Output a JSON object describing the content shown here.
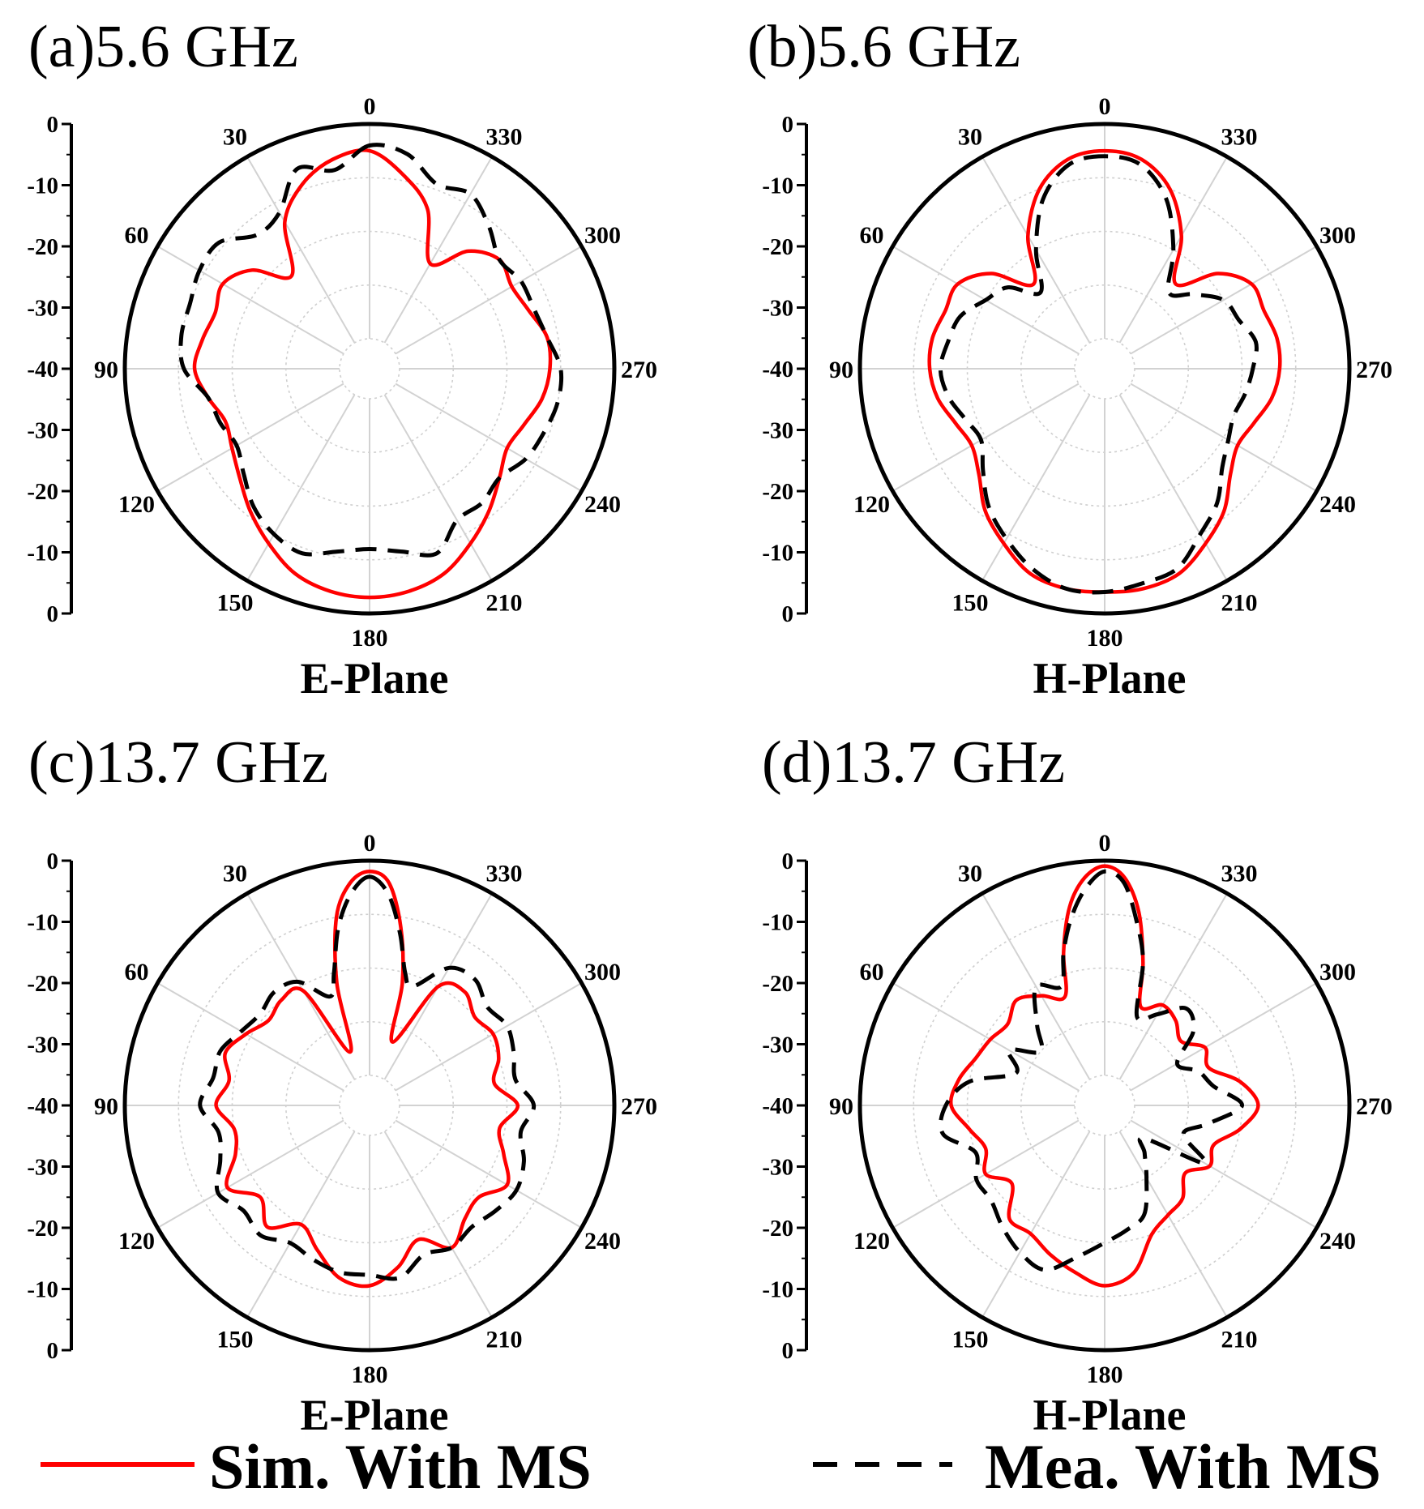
{
  "legend": [
    {
      "label": "Sim. With MS",
      "color": "#ff0000",
      "style": "solid"
    },
    {
      "label": "Mea. With MS",
      "color": "#000000",
      "style": "dashed"
    }
  ],
  "chart_data": [
    {
      "type": "polar-line",
      "panel": "(a)",
      "title": "(a)5.6 GHz",
      "xlabel": "E-Plane",
      "angle_ticks": [
        "0",
        "30",
        "60",
        "90",
        "120",
        "150",
        "180",
        "210",
        "240",
        "270",
        "300",
        "330"
      ],
      "radial_ticks_upper": [
        "0",
        "-10",
        "-20",
        "-30",
        "-40"
      ],
      "radial_ticks_lower": [
        "-30",
        "-20",
        "-10",
        "0"
      ],
      "rlim": [
        -40,
        0
      ],
      "angle_direction": "counterclockwise",
      "series": [
        {
          "name": "Sim. With MS",
          "color": "#ff0000",
          "style": "solid",
          "angles": [
            0,
            10,
            20,
            30,
            40,
            50,
            60,
            70,
            80,
            90,
            100,
            110,
            120,
            130,
            140,
            150,
            160,
            170,
            180,
            190,
            200,
            210,
            220,
            230,
            240,
            250,
            260,
            270,
            280,
            290,
            300,
            310,
            320,
            330,
            340,
            350
          ],
          "values": [
            -5,
            -6,
            -9,
            -14,
            -23,
            -17,
            -14,
            -15,
            -14,
            -13,
            -15,
            -17,
            -16,
            -14,
            -11,
            -8,
            -5,
            -3.5,
            -3,
            -3.5,
            -5,
            -8,
            -11,
            -14,
            -16,
            -15,
            -13,
            -12,
            -12,
            -14,
            -15,
            -14,
            -17,
            -23,
            -14,
            -9
          ]
        },
        {
          "name": "Mea. With MS",
          "color": "#000000",
          "style": "dashed",
          "angles": [
            0,
            10,
            20,
            30,
            40,
            50,
            60,
            70,
            80,
            90,
            100,
            110,
            120,
            130,
            140,
            150,
            160,
            170,
            180,
            190,
            200,
            210,
            220,
            230,
            240,
            250,
            260,
            270,
            280,
            290,
            300,
            310,
            320,
            330,
            340,
            350
          ],
          "values": [
            -4,
            -8,
            -6,
            -12,
            -13,
            -9,
            -9,
            -10,
            -10,
            -11,
            -15,
            -16,
            -17,
            -15,
            -12,
            -10,
            -9,
            -11,
            -12,
            -11,
            -9,
            -13,
            -13,
            -14,
            -12,
            -11,
            -10,
            -10,
            -12,
            -13,
            -13,
            -14,
            -11,
            -8,
            -9,
            -5
          ]
        }
      ]
    },
    {
      "type": "polar-line",
      "panel": "(b)",
      "title": "(b)5.6 GHz",
      "xlabel": "H-Plane",
      "angle_ticks": [
        "0",
        "30",
        "60",
        "90",
        "120",
        "150",
        "180",
        "210",
        "240",
        "270",
        "300",
        "330"
      ],
      "radial_ticks_upper": [
        "0",
        "-10",
        "-20",
        "-30",
        "-40"
      ],
      "radial_ticks_lower": [
        "-30",
        "-20",
        "-10",
        "0"
      ],
      "rlim": [
        -40,
        0
      ],
      "angle_direction": "counterclockwise",
      "series": [
        {
          "name": "Sim. With MS",
          "color": "#ff0000",
          "style": "solid",
          "angles": [
            0,
            10,
            20,
            30,
            40,
            50,
            60,
            70,
            80,
            90,
            100,
            110,
            120,
            130,
            140,
            150,
            160,
            170,
            180,
            190,
            200,
            210,
            220,
            230,
            240,
            250,
            260,
            270,
            280,
            290,
            300,
            310,
            320,
            330,
            340,
            350
          ],
          "values": [
            -5,
            -6,
            -10,
            -17,
            -25,
            -18,
            -14,
            -14,
            -13,
            -13,
            -14,
            -16,
            -17,
            -15,
            -11,
            -8,
            -5,
            -4,
            -4,
            -4,
            -5,
            -8,
            -11,
            -15,
            -17,
            -16,
            -14,
            -13,
            -13,
            -14,
            -14,
            -18,
            -25,
            -17,
            -10,
            -6
          ]
        },
        {
          "name": "Mea. With MS",
          "color": "#000000",
          "style": "dashed",
          "angles": [
            0,
            10,
            20,
            30,
            40,
            50,
            60,
            70,
            80,
            90,
            100,
            110,
            120,
            130,
            140,
            150,
            160,
            170,
            180,
            190,
            200,
            210,
            220,
            230,
            240,
            250,
            260,
            270,
            280,
            290,
            300,
            310,
            320,
            330,
            340,
            350
          ],
          "values": [
            -6,
            -7,
            -12,
            -20,
            -27,
            -22,
            -20,
            -17,
            -16,
            -15,
            -16,
            -18,
            -19,
            -16,
            -12,
            -9,
            -6,
            -4,
            -4,
            -5,
            -6,
            -10,
            -13,
            -17,
            -19,
            -20,
            -19,
            -18,
            -17,
            -19,
            -20,
            -24,
            -27,
            -20,
            -12,
            -7
          ]
        }
      ]
    },
    {
      "type": "polar-line",
      "panel": "(c)",
      "title": "(c)13.7 GHz",
      "xlabel": "E-Plane",
      "angle_ticks": [
        "0",
        "30",
        "60",
        "90",
        "120",
        "150",
        "180",
        "210",
        "240",
        "270",
        "300",
        "330"
      ],
      "radial_ticks_upper": [
        "0",
        "-10",
        "-20",
        "-30",
        "-40"
      ],
      "radial_ticks_lower": [
        "-30",
        "-20",
        "-10",
        "0"
      ],
      "rlim": [
        -40,
        0
      ],
      "angle_direction": "counterclockwise",
      "series": [
        {
          "name": "Sim. With MS",
          "color": "#ff0000",
          "style": "solid",
          "angles": [
            0,
            5,
            10,
            15,
            20,
            30,
            40,
            50,
            60,
            70,
            80,
            90,
            100,
            110,
            120,
            130,
            140,
            150,
            160,
            170,
            180,
            190,
            200,
            210,
            220,
            230,
            240,
            250,
            260,
            270,
            280,
            290,
            300,
            310,
            320,
            330,
            340,
            345,
            350,
            355
          ],
          "values": [
            -2,
            -4,
            -10,
            -22,
            -35,
            -21,
            -20,
            -21,
            -19,
            -17,
            -19,
            -17,
            -20,
            -19,
            -15,
            -19,
            -16,
            -20,
            -17,
            -13,
            -12,
            -15,
            -19,
            -15,
            -18,
            -19,
            -16,
            -19,
            -21,
            -18,
            -22,
            -20,
            -19,
            -20,
            -18,
            -20,
            -33,
            -22,
            -12,
            -4
          ]
        },
        {
          "name": "Mea. With MS",
          "color": "#000000",
          "style": "dashed",
          "angles": [
            0,
            5,
            10,
            15,
            20,
            30,
            40,
            50,
            60,
            70,
            80,
            90,
            100,
            110,
            120,
            130,
            140,
            150,
            160,
            170,
            180,
            190,
            200,
            210,
            220,
            230,
            240,
            250,
            260,
            270,
            280,
            290,
            300,
            310,
            320,
            330,
            340,
            345,
            350,
            355
          ],
          "values": [
            -3,
            -6,
            -12,
            -20,
            -24,
            -19,
            -18,
            -19,
            -18,
            -16,
            -16,
            -14,
            -17,
            -16,
            -13,
            -15,
            -14,
            -16,
            -15,
            -14,
            -14,
            -13,
            -16,
            -15,
            -16,
            -15,
            -14,
            -15,
            -17,
            -15,
            -18,
            -17,
            -16,
            -17,
            -15,
            -16,
            -22,
            -20,
            -13,
            -6
          ]
        }
      ]
    },
    {
      "type": "polar-line",
      "panel": "(d)",
      "title": "(d)13.7 GHz",
      "xlabel": "H-Plane",
      "angle_ticks": [
        "0",
        "30",
        "60",
        "90",
        "120",
        "150",
        "180",
        "210",
        "240",
        "270",
        "300",
        "330"
      ],
      "radial_ticks_upper": [
        "0",
        "-10",
        "-20",
        "-30",
        "-40"
      ],
      "radial_ticks_lower": [
        "-30",
        "-20",
        "-10",
        "0"
      ],
      "rlim": [
        -40,
        0
      ],
      "angle_direction": "counterclockwise",
      "series": [
        {
          "name": "Sim. With MS",
          "color": "#ff0000",
          "style": "solid",
          "angles": [
            0,
            5,
            10,
            15,
            20,
            30,
            40,
            50,
            60,
            70,
            80,
            90,
            100,
            110,
            120,
            130,
            140,
            150,
            160,
            170,
            180,
            190,
            200,
            210,
            220,
            230,
            240,
            250,
            260,
            270,
            280,
            290,
            300,
            310,
            320,
            330,
            340,
            345,
            350,
            355
          ],
          "values": [
            -1,
            -3,
            -8,
            -16,
            -24,
            -22,
            -20,
            -22,
            -21,
            -20,
            -18,
            -17,
            -20,
            -22,
            -20,
            -23,
            -18,
            -18,
            -16,
            -14,
            -12,
            -14,
            -20,
            -22,
            -23,
            -26,
            -23,
            -24,
            -20,
            -17,
            -20,
            -25,
            -24,
            -27,
            -25,
            -24,
            -26,
            -18,
            -9,
            -3
          ]
        },
        {
          "name": "Mea. With MS",
          "color": "#000000",
          "style": "dashed",
          "angles": [
            0,
            5,
            10,
            15,
            20,
            30,
            40,
            50,
            60,
            70,
            80,
            90,
            100,
            110,
            120,
            130,
            140,
            150,
            160,
            170,
            180,
            190,
            200,
            210,
            220,
            230,
            240,
            250,
            260,
            270,
            280,
            290,
            300,
            310,
            320,
            330,
            340,
            345,
            350,
            355
          ],
          "values": [
            -2,
            -5,
            -10,
            -16,
            -22,
            -20,
            -26,
            -30,
            -25,
            -28,
            -20,
            -16,
            -15,
            -20,
            -18,
            -18,
            -16,
            -14,
            -13,
            -17,
            -20,
            -22,
            -24,
            -30,
            -34,
            -36,
            -24,
            -30,
            -26,
            -20,
            -25,
            -27,
            -30,
            -24,
            -22,
            -26,
            -28,
            -18,
            -11,
            -4
          ]
        }
      ]
    }
  ]
}
